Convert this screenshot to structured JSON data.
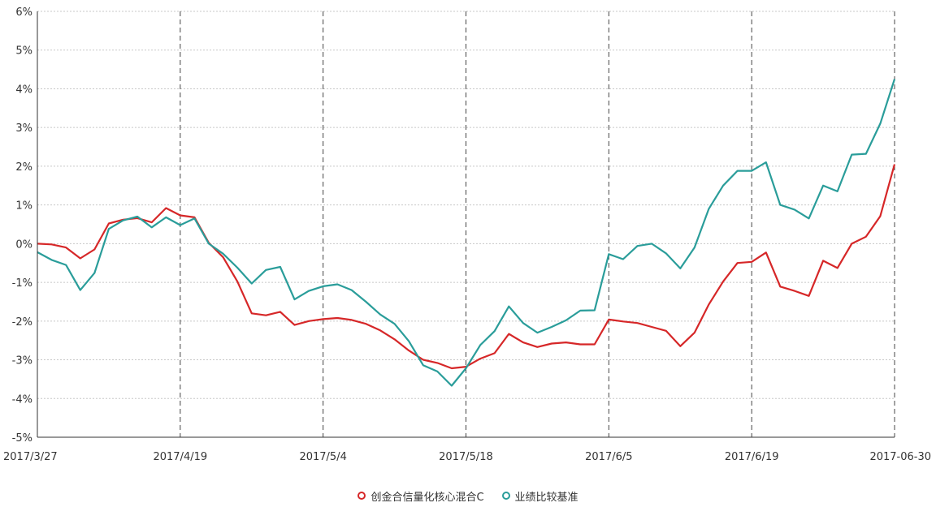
{
  "chart_data": {
    "type": "line",
    "x_ticks": [
      "2017/3/27",
      "2017/4/19",
      "2017/5/4",
      "2017/5/18",
      "2017/6/5",
      "2017/6/19",
      "2017-06-30"
    ],
    "y_ticks": [
      "6%",
      "5%",
      "4%",
      "3%",
      "2%",
      "1%",
      "0%",
      "-1%",
      "-2%",
      "-3%",
      "-4%",
      "-5%"
    ],
    "ylim": [
      -5,
      6
    ],
    "y_unit": "%",
    "grid": true,
    "legend_position": "bottom",
    "series": [
      {
        "name": "创金合信量化核心混合C",
        "color": "#d62728",
        "values": [
          0.0,
          -0.02,
          -0.1,
          -0.38,
          -0.15,
          0.52,
          0.62,
          0.66,
          0.55,
          0.92,
          0.73,
          0.68,
          0.02,
          -0.35,
          -0.98,
          -1.8,
          -1.85,
          -1.76,
          -2.1,
          -2.0,
          -1.95,
          -1.92,
          -1.97,
          -2.07,
          -2.24,
          -2.47,
          -2.76,
          -3.0,
          -3.08,
          -3.22,
          -3.18,
          -2.97,
          -2.83,
          -2.33,
          -2.55,
          -2.67,
          -2.58,
          -2.55,
          -2.6,
          -2.6,
          -1.96,
          -2.01,
          -2.05,
          -2.15,
          -2.25,
          -2.65,
          -2.3,
          -1.57,
          -0.98,
          -0.5,
          -0.47,
          -0.23,
          -1.11,
          -1.22,
          -1.35,
          -0.44,
          -0.63,
          0.0,
          0.18,
          0.71,
          2.05
        ]
      },
      {
        "name": "业绩比较基准",
        "color": "#2a9d9a",
        "values": [
          -0.22,
          -0.42,
          -0.55,
          -1.2,
          -0.76,
          0.38,
          0.6,
          0.7,
          0.42,
          0.68,
          0.48,
          0.65,
          0.0,
          -0.26,
          -0.62,
          -1.03,
          -0.68,
          -0.6,
          -1.44,
          -1.22,
          -1.1,
          -1.05,
          -1.2,
          -1.5,
          -1.83,
          -2.07,
          -2.52,
          -3.14,
          -3.3,
          -3.67,
          -3.22,
          -2.62,
          -2.26,
          -1.62,
          -2.05,
          -2.3,
          -2.15,
          -1.98,
          -1.73,
          -1.72,
          -0.27,
          -0.4,
          -0.06,
          -0.0,
          -0.25,
          -0.64,
          -0.1,
          0.9,
          1.5,
          1.88,
          1.88,
          2.1,
          1.0,
          0.88,
          0.65,
          1.5,
          1.35,
          2.3,
          2.32,
          3.1,
          4.25
        ]
      }
    ]
  }
}
